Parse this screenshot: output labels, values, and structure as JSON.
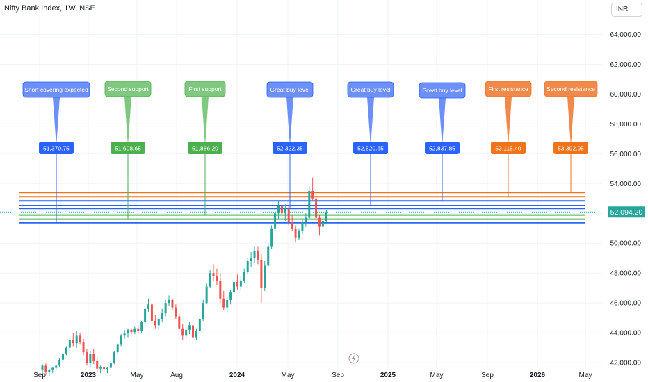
{
  "header": {
    "title": "Nifty Bank Index, 1W, NSE"
  },
  "toolbar": {
    "currency": "INR"
  },
  "colors": {
    "up": "#26a69a",
    "down": "#ef5350",
    "blue": "#2962ff",
    "green": "#4caf50",
    "orange": "#f0731a",
    "callout_blue": "#6d8ff8",
    "callout_green": "#7fc880",
    "callout_orange": "#f08a4b",
    "grid": "#f0f3fa",
    "price_line": "#26a69a"
  },
  "chart_data": {
    "type": "candlestick",
    "title": "Nifty Bank Index, 1W, NSE",
    "ylim": [
      41400,
      65600
    ],
    "y_ticks": [
      "42,000.00",
      "44,000.00",
      "46,000.00",
      "48,000.00",
      "50,000.00",
      "52,000.00",
      "54,000.00",
      "56,000.00",
      "58,000.00",
      "60,000.00",
      "62,000.00",
      "64,000.00"
    ],
    "y_tick_values": [
      42000,
      44000,
      46000,
      48000,
      50000,
      52000,
      54000,
      56000,
      58000,
      60000,
      62000,
      64000
    ],
    "x_ticks": [
      {
        "label": "Sep",
        "bold": false
      },
      {
        "label": "2023",
        "bold": true
      },
      {
        "label": "May",
        "bold": false
      },
      {
        "label": "Aug",
        "bold": false
      },
      {
        "label": "2024",
        "bold": true
      },
      {
        "label": "May",
        "bold": false
      },
      {
        "label": "Sep",
        "bold": false
      },
      {
        "label": "2025",
        "bold": true
      },
      {
        "label": "May",
        "bold": false
      },
      {
        "label": "Sep",
        "bold": false
      },
      {
        "label": "2026",
        "bold": true
      },
      {
        "label": "May",
        "bold": false
      }
    ],
    "current_price": "52,094.20",
    "current_price_value": 52094.2,
    "levels": [
      {
        "name": "Short covering expected",
        "value": 51370.75,
        "label": "51,370.75",
        "color": "blue"
      },
      {
        "name": "Second support",
        "value": 51608.65,
        "label": "51,608.65",
        "color": "green"
      },
      {
        "name": "First support",
        "value": 51886.2,
        "label": "51,886.20",
        "color": "green"
      },
      {
        "name": "Great buy level",
        "value": 52322.35,
        "label": "52,322.35",
        "color": "blue"
      },
      {
        "name": "Great buy level",
        "value": 52520.65,
        "label": "52,520.65",
        "color": "blue"
      },
      {
        "name": "Great buy level",
        "value": 52837.85,
        "label": "52,837.85",
        "color": "blue"
      },
      {
        "name": "First resistance",
        "value": 53115.4,
        "label": "53,115.40",
        "color": "orange"
      },
      {
        "name": "Second resistance",
        "value": 53392.95,
        "label": "53,392.95",
        "color": "orange"
      }
    ],
    "candles": [
      [
        41500,
        41900,
        41300,
        41800
      ],
      [
        41800,
        41950,
        41200,
        41400
      ],
      [
        41400,
        41600,
        41100,
        41500
      ],
      [
        41500,
        41700,
        41300,
        41650
      ],
      [
        41650,
        41900,
        41500,
        41800
      ],
      [
        41800,
        42300,
        41700,
        42200
      ],
      [
        42200,
        42700,
        42000,
        42600
      ],
      [
        42600,
        43100,
        42500,
        43000
      ],
      [
        43000,
        43700,
        42800,
        43500
      ],
      [
        43500,
        44000,
        43100,
        43300
      ],
      [
        43300,
        44100,
        43000,
        43800
      ],
      [
        43800,
        44000,
        43200,
        43400
      ],
      [
        43400,
        43600,
        42500,
        42700
      ],
      [
        42700,
        42900,
        41800,
        42000
      ],
      [
        42000,
        42800,
        41700,
        42600
      ],
      [
        42600,
        42900,
        41900,
        42100
      ],
      [
        42100,
        42300,
        41400,
        41600
      ],
      [
        41600,
        41800,
        41300,
        41700
      ],
      [
        41700,
        41900,
        41400,
        41550
      ],
      [
        41550,
        41700,
        41300,
        41650
      ],
      [
        41650,
        42100,
        41500,
        42000
      ],
      [
        42000,
        42800,
        41900,
        42700
      ],
      [
        42700,
        43300,
        42600,
        43200
      ],
      [
        43200,
        43900,
        43100,
        43800
      ],
      [
        43800,
        44200,
        43600,
        43950
      ],
      [
        43950,
        44300,
        43700,
        44200
      ],
      [
        44200,
        44300,
        43900,
        44050
      ],
      [
        44050,
        44400,
        43900,
        44300
      ],
      [
        44300,
        44500,
        44000,
        44100
      ],
      [
        44100,
        44800,
        44000,
        44700
      ],
      [
        44700,
        45700,
        44600,
        45600
      ],
      [
        45600,
        46300,
        45400,
        45900
      ],
      [
        45900,
        46000,
        44600,
        44800
      ],
      [
        44800,
        45200,
        44300,
        44500
      ],
      [
        44500,
        45100,
        44200,
        44900
      ],
      [
        44900,
        45600,
        44700,
        45300
      ],
      [
        45300,
        46200,
        45100,
        46000
      ],
      [
        46000,
        46500,
        45800,
        46200
      ],
      [
        46200,
        46300,
        45500,
        45700
      ],
      [
        45700,
        45900,
        44900,
        45100
      ],
      [
        45100,
        45300,
        44200,
        44300
      ],
      [
        44300,
        44600,
        43500,
        43800
      ],
      [
        43800,
        44400,
        43600,
        44200
      ],
      [
        44200,
        44700,
        43900,
        44500
      ],
      [
        44500,
        44800,
        43600,
        43700
      ],
      [
        43700,
        44300,
        43500,
        44100
      ],
      [
        44100,
        45000,
        44000,
        44900
      ],
      [
        44900,
        46200,
        44800,
        46000
      ],
      [
        46000,
        47300,
        45900,
        47100
      ],
      [
        47100,
        48200,
        47000,
        48000
      ],
      [
        48000,
        48600,
        47500,
        47800
      ],
      [
        47800,
        48300,
        47200,
        47500
      ],
      [
        47500,
        48000,
        46000,
        46300
      ],
      [
        46300,
        46800,
        45500,
        45700
      ],
      [
        45700,
        46400,
        45400,
        46200
      ],
      [
        46200,
        46900,
        45900,
        46700
      ],
      [
        46700,
        47600,
        46500,
        47400
      ],
      [
        47400,
        47900,
        46900,
        47100
      ],
      [
        47100,
        47800,
        46800,
        47500
      ],
      [
        47500,
        48300,
        47300,
        48100
      ],
      [
        48100,
        49000,
        47900,
        48800
      ],
      [
        48800,
        49400,
        48400,
        49000
      ],
      [
        49000,
        49800,
        48700,
        49500
      ],
      [
        49500,
        49800,
        48600,
        48900
      ],
      [
        48900,
        49300,
        46000,
        47000
      ],
      [
        47000,
        48800,
        46800,
        48500
      ],
      [
        48500,
        50000,
        48400,
        49800
      ],
      [
        49800,
        51200,
        49600,
        51000
      ],
      [
        51000,
        52200,
        50800,
        52000
      ],
      [
        52000,
        52800,
        51600,
        52500
      ],
      [
        52500,
        52900,
        51800,
        52000
      ],
      [
        52000,
        52600,
        51500,
        52300
      ],
      [
        52300,
        52500,
        51200,
        51400
      ],
      [
        51400,
        51900,
        50800,
        51000
      ],
      [
        51000,
        51200,
        50100,
        50400
      ],
      [
        50400,
        51000,
        50200,
        50800
      ],
      [
        50800,
        51600,
        50600,
        51400
      ],
      [
        51400,
        52000,
        51100,
        51700
      ],
      [
        51700,
        53800,
        51600,
        53500
      ],
      [
        53500,
        54400,
        52800,
        53000
      ],
      [
        53000,
        53300,
        51500,
        51700
      ],
      [
        51700,
        51900,
        50500,
        51100
      ],
      [
        51100,
        51700,
        50900,
        51500
      ],
      [
        51500,
        52200,
        51300,
        52094
      ]
    ]
  }
}
